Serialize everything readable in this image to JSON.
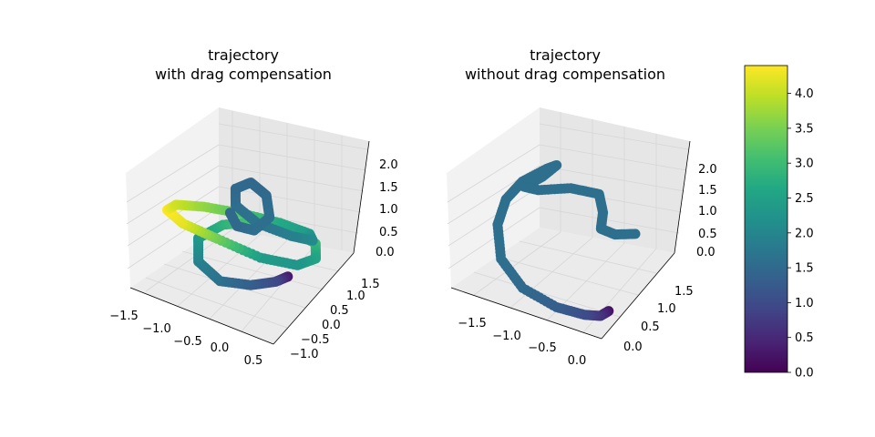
{
  "chart_data": [
    {
      "type": "scatter3d",
      "title": "trajectory\nwith drag compensation",
      "x_ticks": [
        "−1.5",
        "−1.0",
        "−0.5",
        "0.0",
        "0.5"
      ],
      "y_ticks": [
        "−1.0",
        "−0.5",
        "0.0",
        "0.5",
        "1.0",
        "1.5"
      ],
      "z_ticks": [
        "0.0",
        "0.5",
        "1.0",
        "1.5",
        "2.0"
      ],
      "xlim": [
        -1.6,
        0.7
      ],
      "ylim": [
        -1.2,
        1.7
      ],
      "zlim": [
        -0.1,
        2.3
      ],
      "color_metric_range": [
        0,
        4.4
      ],
      "description_segments": "approximate path points [x, y, z, colorValue]",
      "points": [
        [
          0.0,
          0.7,
          0.12,
          0.3
        ],
        [
          -0.1,
          0.5,
          0.05,
          0.9
        ],
        [
          -0.3,
          0.1,
          0.05,
          1.3
        ],
        [
          -0.6,
          -0.3,
          0.15,
          1.6
        ],
        [
          -0.85,
          -0.5,
          0.5,
          1.9
        ],
        [
          -0.9,
          -0.4,
          0.9,
          2.3
        ],
        [
          -0.7,
          0.0,
          1.1,
          2.8
        ],
        [
          -0.4,
          0.5,
          1.1,
          3.2
        ],
        [
          -0.05,
          0.9,
          0.95,
          3.4
        ],
        [
          0.3,
          1.0,
          0.8,
          3.0
        ],
        [
          0.45,
          0.7,
          0.7,
          2.6
        ],
        [
          0.4,
          0.2,
          0.75,
          2.3
        ],
        [
          0.1,
          -0.4,
          1.0,
          2.4
        ],
        [
          -0.4,
          -0.8,
          1.3,
          3.4
        ],
        [
          -0.9,
          -0.9,
          1.4,
          4.2
        ],
        [
          -1.3,
          -0.6,
          1.35,
          4.4
        ],
        [
          -1.4,
          -0.1,
          1.2,
          4.1
        ],
        [
          -1.2,
          0.4,
          1.05,
          3.7
        ],
        [
          -0.8,
          0.8,
          0.95,
          3.2
        ],
        [
          -0.3,
          1.05,
          0.9,
          2.7
        ],
        [
          0.2,
          1.0,
          0.95,
          2.4
        ],
        [
          0.45,
          0.6,
          1.1,
          2.1
        ],
        [
          0.35,
          0.1,
          1.35,
          1.9
        ],
        [
          0.0,
          -0.3,
          1.6,
          1.7
        ],
        [
          -0.3,
          -0.4,
          1.85,
          1.6
        ],
        [
          -0.4,
          -0.2,
          2.05,
          1.5
        ],
        [
          -0.3,
          0.1,
          2.1,
          1.5
        ],
        [
          -0.1,
          0.2,
          1.9,
          1.5
        ],
        [
          0.0,
          0.1,
          1.55,
          1.6
        ],
        [
          -0.15,
          -0.1,
          1.3,
          1.6
        ],
        [
          -0.35,
          -0.25,
          1.35,
          1.5
        ],
        [
          -0.5,
          -0.2,
          1.55,
          1.5
        ]
      ]
    },
    {
      "type": "scatter3d",
      "title": "trajectory\nwithout drag compensation",
      "x_ticks": [
        "−1.5",
        "−1.0",
        "−0.5",
        "0.0"
      ],
      "y_ticks": [
        "0.0",
        "0.5",
        "1.0",
        "1.5"
      ],
      "z_ticks": [
        "0.0",
        "0.5",
        "1.0",
        "1.5",
        "2.0"
      ],
      "xlim": [
        -1.75,
        0.15
      ],
      "ylim": [
        -0.25,
        1.85
      ],
      "zlim": [
        -0.1,
        2.35
      ],
      "color_metric_range": [
        0,
        4.4
      ],
      "points": [
        [
          0.0,
          0.2,
          0.12,
          0.2
        ],
        [
          -0.05,
          0.1,
          0.05,
          0.6
        ],
        [
          -0.2,
          0.0,
          0.05,
          1.0
        ],
        [
          -0.5,
          -0.1,
          0.1,
          1.3
        ],
        [
          -0.9,
          -0.15,
          0.3,
          1.5
        ],
        [
          -1.2,
          -0.1,
          0.7,
          1.6
        ],
        [
          -1.35,
          0.1,
          1.2,
          1.6
        ],
        [
          -1.35,
          0.3,
          1.6,
          1.6
        ],
        [
          -1.25,
          0.5,
          1.9,
          1.6
        ],
        [
          -1.05,
          0.7,
          2.15,
          1.6
        ],
        [
          -0.95,
          0.75,
          2.25,
          1.6
        ],
        [
          -1.05,
          0.6,
          2.05,
          1.6
        ],
        [
          -1.2,
          0.45,
          1.85,
          1.6
        ],
        [
          -1.1,
          0.6,
          1.75,
          1.6
        ],
        [
          -0.85,
          0.9,
          1.75,
          1.6
        ],
        [
          -0.6,
          1.1,
          1.65,
          1.6
        ],
        [
          -0.55,
          1.1,
          1.3,
          1.6
        ],
        [
          -0.55,
          1.05,
          1.0,
          1.6
        ],
        [
          -0.45,
          1.2,
          0.85,
          1.6
        ],
        [
          -0.3,
          1.45,
          0.8,
          1.6
        ]
      ]
    }
  ],
  "colorbar": {
    "ticks": [
      "0.0",
      "0.5",
      "1.0",
      "1.5",
      "2.0",
      "2.5",
      "3.0",
      "3.5",
      "4.0"
    ],
    "min": 0.0,
    "max": 4.4,
    "colormap": "viridis"
  }
}
